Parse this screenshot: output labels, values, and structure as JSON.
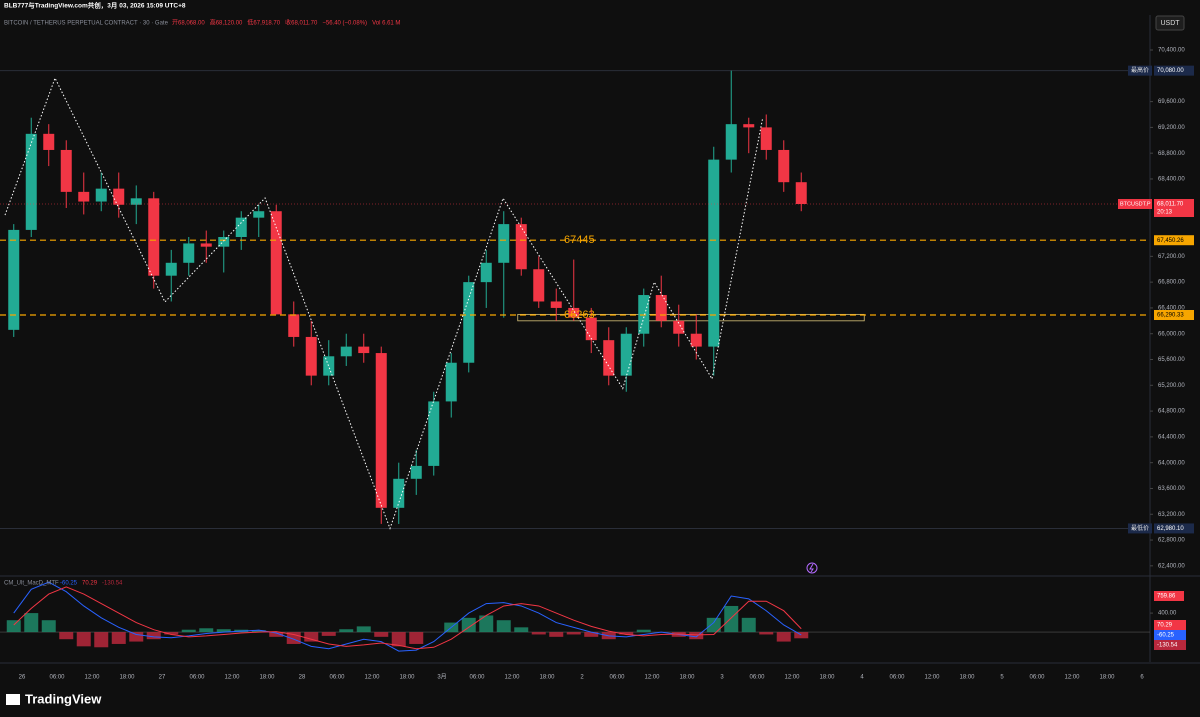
{
  "header": {
    "watermark": "BLB777与TradingView.com共创，3月 03, 2026 15:09 UTC+8",
    "currency": "USDT"
  },
  "footer": {
    "brand": "TradingView"
  },
  "chart_data": [
    {
      "type": "candlestick",
      "title": "BITCOIN / TETHERUS PERPETUAL CONTRACT · 30 · Gate",
      "ohlc_legend": [
        "开68,068.00",
        "高68,120.00",
        "低67,918.70",
        "收68,011.70",
        "−56.40 (−0.08%)",
        "Vol 6.61 M"
      ],
      "up_color": "#22ab94",
      "down_color": "#f23645",
      "open": [
        66060,
        67610,
        69100,
        68850,
        68200,
        68050,
        68250,
        68000,
        68100,
        66900,
        67100,
        67400,
        67350,
        67500,
        67800,
        67900,
        66300,
        65950,
        65350,
        65650,
        65800,
        65700,
        63300,
        63750,
        63950,
        64950,
        65550,
        66800,
        67100,
        67700,
        67000,
        66500,
        66400,
        66250,
        65900,
        65350,
        66000,
        66600,
        66200,
        66000,
        65800,
        68700,
        69250,
        69200,
        68850,
        68350
      ],
      "high": [
        67700,
        69350,
        69250,
        69000,
        68500,
        68500,
        68500,
        68300,
        68200,
        67300,
        67500,
        67600,
        67600,
        67900,
        68000,
        68000,
        66500,
        66200,
        65900,
        66000,
        66000,
        65800,
        64000,
        64200,
        65100,
        65700,
        66900,
        67300,
        67900,
        67800,
        67200,
        66700,
        67150,
        66400,
        66100,
        66100,
        66700,
        66900,
        66450,
        66300,
        68900,
        70080,
        69350,
        69400,
        69000,
        68500
      ],
      "low": [
        65950,
        67500,
        68600,
        67950,
        67850,
        67900,
        67800,
        67700,
        66700,
        66500,
        66900,
        67100,
        66950,
        67300,
        67500,
        66300,
        65800,
        65200,
        65200,
        65500,
        65550,
        63050,
        63050,
        63500,
        63800,
        64700,
        65400,
        66400,
        66250,
        66900,
        66400,
        66200,
        66200,
        65700,
        65200,
        65100,
        65800,
        66100,
        65800,
        65600,
        65350,
        68500,
        68800,
        68700,
        68200,
        67900
      ],
      "close": [
        67610,
        69100,
        68850,
        68200,
        68050,
        68250,
        68000,
        68100,
        66900,
        67100,
        67400,
        67350,
        67500,
        67800,
        67900,
        66300,
        65950,
        65350,
        65650,
        65800,
        65700,
        63300,
        63750,
        63950,
        64950,
        65550,
        66800,
        67100,
        67700,
        67000,
        66500,
        66400,
        66250,
        65900,
        65350,
        66000,
        66600,
        66200,
        66000,
        65800,
        68700,
        69250,
        69200,
        68850,
        68350,
        68011.7
      ],
      "x_labels": [
        "26",
        "06:00",
        "12:00",
        "18:00",
        "27",
        "06:00",
        "12:00",
        "18:00",
        "28",
        "06:00",
        "12:00",
        "18:00",
        "3月",
        "06:00",
        "12:00",
        "18:00",
        "2",
        "06:00",
        "12:00",
        "18:00",
        "3",
        "06:00",
        "12:00",
        "18:00",
        "4",
        "06:00",
        "12:00",
        "18:00",
        "5",
        "06:00",
        "12:00",
        "18:00",
        "6"
      ],
      "ylim": [
        62258,
        70943
      ],
      "yticks": [
        {
          "value": 70400,
          "label": "70,400.00"
        },
        {
          "value": 69600,
          "label": "69,600.00"
        },
        {
          "value": 69200,
          "label": "69,200.00"
        },
        {
          "value": 68800,
          "label": "68,800.00"
        },
        {
          "value": 68400,
          "label": "68,400.00"
        },
        {
          "value": 67200,
          "label": "67,200.00"
        },
        {
          "value": 66800,
          "label": "66,800.00"
        },
        {
          "value": 66400,
          "label": "66,400.00"
        },
        {
          "value": 66000,
          "label": "66,000.00"
        },
        {
          "value": 65600,
          "label": "65,600.00"
        },
        {
          "value": 65200,
          "label": "65,200.00"
        },
        {
          "value": 64800,
          "label": "64,800.00"
        },
        {
          "value": 64400,
          "label": "64,400.00"
        },
        {
          "value": 64000,
          "label": "64,000.00"
        },
        {
          "value": 63600,
          "label": "63,600.00"
        },
        {
          "value": 63200,
          "label": "63,200.00"
        },
        {
          "value": 62800,
          "label": "62,800.00"
        },
        {
          "value": 62400,
          "label": "62,400.00"
        }
      ],
      "zigzag": {
        "color": "#ffffff",
        "x": [
          0,
          2.86,
          9.14,
          14.86,
          22,
          28.46,
          35.3,
          37.1,
          40.4,
          43.3
        ],
        "values": [
          67840,
          69965,
          66493,
          68105,
          62980,
          68100,
          65150,
          66800,
          65300,
          69350
        ]
      },
      "hlines": [
        {
          "value": 67450.26,
          "label": "67,450.26",
          "annotation": "67445",
          "color": "#f7a600"
        },
        {
          "value": 66290.33,
          "label": "66,290.33",
          "annotation": "66263",
          "color": "#f7a600"
        }
      ],
      "box": {
        "x": [
          29.3,
          49.1
        ],
        "values": [
          66300,
          66200
        ],
        "color": "#d8c27a"
      },
      "extremes": [
        {
          "text": "最高价",
          "value": 70080,
          "label": "70,080.00"
        },
        {
          "text": "最低价",
          "value": 62980.1,
          "label": "62,980.10"
        }
      ],
      "last_price": {
        "name": "BTCUSDT.P",
        "value": 68011.7,
        "label": "68,011.70",
        "countdown": "20:13",
        "color": "#f23645"
      }
    },
    {
      "type": "macd",
      "title": "CM_Ult_MacD_MTF",
      "lines": [
        {
          "color": "#2962ff",
          "values": [
            400,
            900,
            1050,
            850,
            550,
            300,
            100,
            -50,
            -100,
            -120,
            -80,
            -30,
            0,
            20,
            40,
            -20,
            -150,
            -300,
            -350,
            -250,
            -150,
            -200,
            -400,
            -380,
            -200,
            100,
            400,
            600,
            620,
            550,
            400,
            200,
            100,
            0,
            -80,
            -100,
            -50,
            0,
            -50,
            -100,
            200,
            759.86,
            700,
            450,
            150,
            -60.25
          ]
        },
        {
          "color": "#f23645",
          "values": [
            150,
            500,
            800,
            950,
            800,
            600,
            400,
            200,
            50,
            -50,
            -100,
            -80,
            -50,
            -20,
            0,
            10,
            -50,
            -150,
            -250,
            -300,
            -270,
            -230,
            -280,
            -350,
            -320,
            -150,
            100,
            350,
            550,
            600,
            550,
            400,
            250,
            120,
            20,
            -50,
            -80,
            -50,
            -40,
            -60,
            -50,
            300,
            650,
            650,
            450,
            70.29
          ]
        }
      ],
      "histogram": {
        "up_color": "#1f8a6a",
        "down_color": "#b8283c",
        "values": [
          250,
          400,
          250,
          -150,
          -300,
          -320,
          -250,
          -200,
          -150,
          -50,
          50,
          80,
          60,
          50,
          40,
          -100,
          -250,
          -200,
          -80,
          60,
          120,
          -100,
          -300,
          -250,
          0,
          200,
          300,
          350,
          250,
          100,
          -50,
          -100,
          -50,
          -100,
          -150,
          -50,
          50,
          0,
          -100,
          -150,
          300,
          550,
          300,
          -50,
          -200,
          -130.54
        ]
      },
      "max_label": {
        "value": 759.86,
        "label": "759.86",
        "color": "#f23645"
      },
      "ylim": [
        -630,
        1160
      ],
      "yticks": [
        {
          "value": 400,
          "label": "400.00"
        }
      ]
    }
  ]
}
